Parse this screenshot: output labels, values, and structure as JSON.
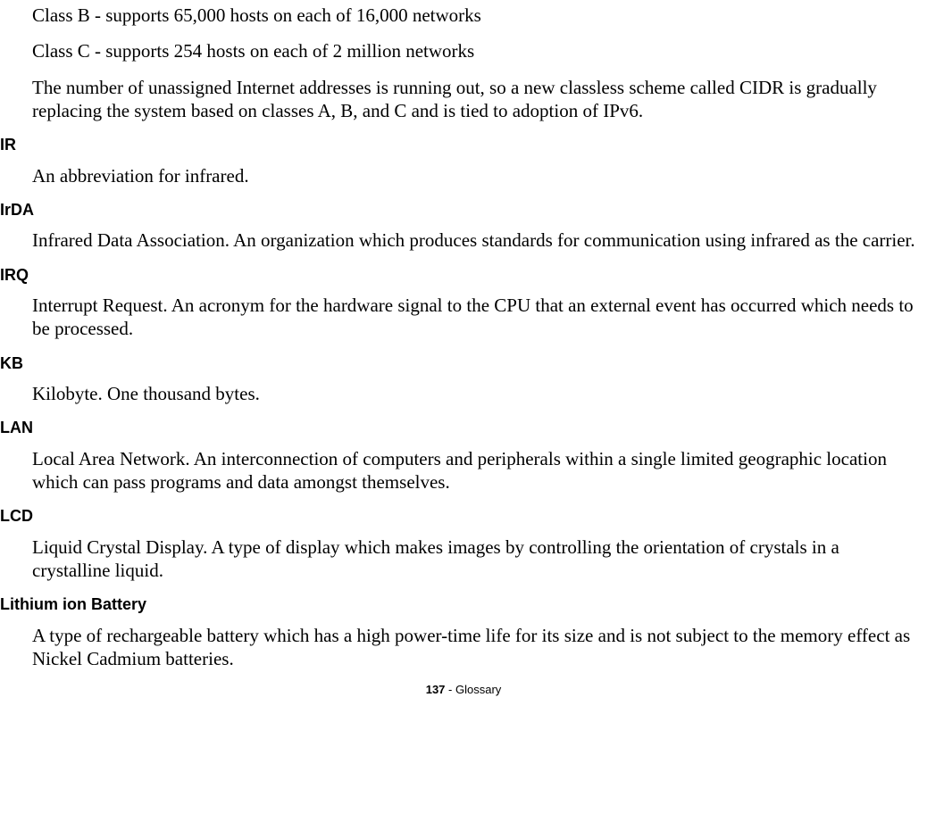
{
  "intro": {
    "line1": "Class B - supports 65,000 hosts on each of 16,000 networks",
    "line2": "Class C - supports 254 hosts on each of 2 million networks",
    "line3": "The number of unassigned Internet addresses is running out, so a new classless scheme called CIDR is gradually replacing the system based on classes A, B, and C and is tied to adoption of IPv6."
  },
  "entries": [
    {
      "term": "IR",
      "def": "An abbreviation for infrared."
    },
    {
      "term": "IrDA",
      "def": "Infrared Data Association. An organization which produces standards for communication using infrared as the carrier."
    },
    {
      "term": "IRQ",
      "def": "Interrupt Request. An acronym for the hardware signal to the CPU that an external event has occurred which needs to be processed."
    },
    {
      "term": "KB",
      "def": "Kilobyte. One thousand bytes."
    },
    {
      "term": "LAN",
      "def": "Local Area Network. An interconnection of computers and peripherals within a single limited geographic location which can pass programs and data amongst themselves."
    },
    {
      "term": "LCD",
      "def": "Liquid Crystal Display. A type of display which makes images by controlling the orientation of crystals in a crystalline liquid."
    },
    {
      "term": "Lithium ion Battery",
      "def": "A type of rechargeable battery which has a high power-time life for its size and is not subject to the memory effect as Nickel Cadmium batteries."
    }
  ],
  "footer": {
    "page": "137",
    "sep": " - ",
    "section": "Glossary"
  }
}
